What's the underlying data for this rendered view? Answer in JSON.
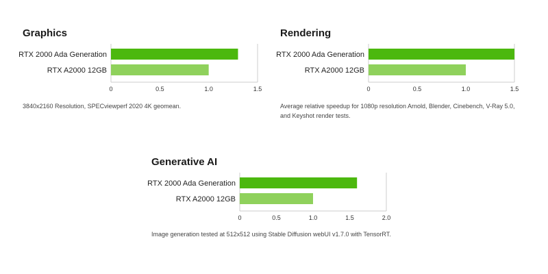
{
  "colors": {
    "primary_bar": "#4cb80e",
    "secondary_bar": "#8fd15c",
    "axis": "#cccccc"
  },
  "panels": [
    {
      "id": "graphics",
      "title": "Graphics",
      "caption": "3840x2160 Resolution, SPECviewperf 2020 4K geomean."
    },
    {
      "id": "rendering",
      "title": "Rendering",
      "caption": "Average relative speedup for 1080p resolution Arnold, Blender, Cinebench, V-Ray 5.0, and Keyshot render tests."
    },
    {
      "id": "genai",
      "title": "Generative AI",
      "caption": "Image generation tested at 512x512 using Stable Diffusion webUI v1.7.0 with TensorRT."
    }
  ],
  "chart_data": [
    {
      "type": "bar",
      "orientation": "horizontal",
      "title": "Graphics",
      "categories": [
        "RTX 2000 Ada Generation",
        "RTX A2000 12GB"
      ],
      "values": [
        1.3,
        1.0
      ],
      "xlim": [
        0,
        1.5
      ],
      "ticks": [
        "0",
        "0.5",
        "1.0",
        "1.5"
      ],
      "tick_values": [
        0,
        0.5,
        1.0,
        1.5
      ],
      "grid": false
    },
    {
      "type": "bar",
      "orientation": "horizontal",
      "title": "Rendering",
      "categories": [
        "RTX 2000 Ada Generation",
        "RTX A2000 12GB"
      ],
      "values": [
        1.5,
        1.0
      ],
      "xlim": [
        0,
        1.5
      ],
      "ticks": [
        "0",
        "0.5",
        "1.0",
        "1.5"
      ],
      "tick_values": [
        0,
        0.5,
        1.0,
        1.5
      ],
      "grid": false
    },
    {
      "type": "bar",
      "orientation": "horizontal",
      "title": "Generative AI",
      "categories": [
        "RTX 2000 Ada Generation",
        "RTX A2000 12GB"
      ],
      "values": [
        1.6,
        1.0
      ],
      "xlim": [
        0,
        2.0
      ],
      "ticks": [
        "0",
        "0.5",
        "1.0",
        "1.5",
        "2.0"
      ],
      "tick_values": [
        0,
        0.5,
        1.0,
        1.5,
        2.0
      ],
      "grid": false
    }
  ]
}
